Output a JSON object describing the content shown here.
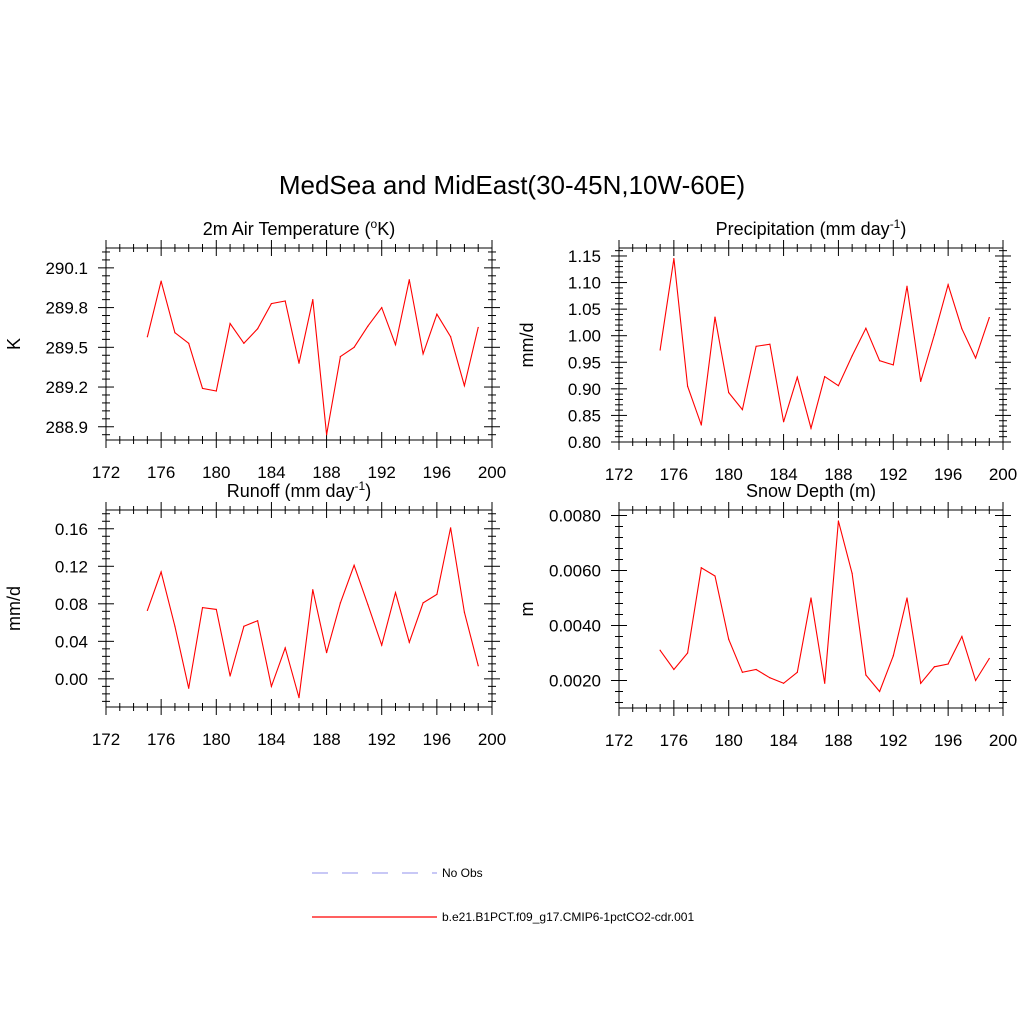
{
  "title": "MedSea and MidEast(30-45N,10W-60E)",
  "legend": {
    "placement": "bottom-center",
    "entries": [
      {
        "label": "No Obs",
        "color": "#a8a8f0",
        "style": "dashed"
      },
      {
        "label": "b.e21.B1PCT.f09_g17.CMIP6-1pctCO2-cdr.001",
        "color": "#ff0000",
        "style": "solid"
      }
    ]
  },
  "chart_data": [
    {
      "type": "line",
      "title": "2m Air Temperature (",
      "title_sup": "o",
      "title_tail": "K)",
      "ylabel": "K",
      "xlabel": "",
      "xlim": [
        172,
        200
      ],
      "ylim": [
        288.8,
        290.25
      ],
      "xticks": [
        172,
        176,
        180,
        184,
        188,
        192,
        196,
        200
      ],
      "yticks": [
        288.9,
        289.2,
        289.5,
        289.8,
        290.1
      ],
      "ytick_labels": [
        "288.9",
        "289.2",
        "289.5",
        "289.8",
        "290.1"
      ],
      "grid": false,
      "color": "#ff0000",
      "x": [
        175,
        176,
        177,
        178,
        179,
        180,
        181,
        182,
        183,
        184,
        185,
        186,
        187,
        188,
        189,
        190,
        191,
        192,
        193,
        194,
        195,
        196,
        197,
        198,
        199
      ],
      "y": [
        289.58,
        290.0,
        289.61,
        289.53,
        289.19,
        289.17,
        289.68,
        289.53,
        289.64,
        289.83,
        289.85,
        289.38,
        289.86,
        288.84,
        289.43,
        289.5,
        289.66,
        289.8,
        289.52,
        290.01,
        289.45,
        289.75,
        289.58,
        289.21,
        289.65
      ]
    },
    {
      "type": "line",
      "title": "Precipitation (mm day",
      "title_sup": "-1",
      "title_tail": ")",
      "ylabel": "mm/d",
      "xlabel": "",
      "xlim": [
        172,
        200
      ],
      "ylim": [
        0.8,
        1.165
      ],
      "xticks": [
        172,
        176,
        180,
        184,
        188,
        192,
        196,
        200
      ],
      "yticks": [
        0.8,
        0.85,
        0.9,
        0.95,
        1.0,
        1.05,
        1.1,
        1.15
      ],
      "ytick_labels": [
        "0.80",
        "0.85",
        "0.90",
        "0.95",
        "1.00",
        "1.05",
        "1.10",
        "1.15"
      ],
      "grid": false,
      "color": "#ff0000",
      "x": [
        175,
        176,
        177,
        178,
        179,
        180,
        181,
        182,
        183,
        184,
        185,
        186,
        187,
        188,
        189,
        190,
        191,
        192,
        193,
        194,
        195,
        196,
        197,
        198,
        199
      ],
      "y": [
        0.973,
        1.145,
        0.905,
        0.832,
        1.035,
        0.893,
        0.861,
        0.98,
        0.984,
        0.838,
        0.922,
        0.826,
        0.923,
        0.906,
        0.962,
        1.014,
        0.953,
        0.945,
        1.093,
        0.914,
        1.002,
        1.096,
        1.013,
        0.958,
        1.034
      ]
    },
    {
      "type": "line",
      "title": "Runoff (mm day",
      "title_sup": "-1",
      "title_tail": ")",
      "ylabel": "mm/d",
      "xlabel": "",
      "xlim": [
        172,
        200
      ],
      "ylim": [
        -0.03,
        0.18
      ],
      "xticks": [
        172,
        176,
        180,
        184,
        188,
        192,
        196,
        200
      ],
      "yticks": [
        0.0,
        0.04,
        0.08,
        0.12,
        0.16
      ],
      "ytick_labels": [
        "0.00",
        "0.04",
        "0.08",
        "0.12",
        "0.16"
      ],
      "grid": false,
      "color": "#ff0000",
      "x": [
        175,
        176,
        177,
        178,
        179,
        180,
        181,
        182,
        183,
        184,
        185,
        186,
        187,
        188,
        189,
        190,
        191,
        192,
        193,
        194,
        195,
        196,
        197,
        198,
        199
      ],
      "y": [
        0.073,
        0.114,
        0.056,
        -0.01,
        0.076,
        0.074,
        0.003,
        0.056,
        0.062,
        -0.008,
        0.033,
        -0.02,
        0.095,
        0.028,
        0.081,
        0.121,
        0.079,
        0.036,
        0.092,
        0.039,
        0.081,
        0.09,
        0.161,
        0.071,
        0.014
      ]
    },
    {
      "type": "line",
      "title": "Snow Depth (m)",
      "title_sup": "",
      "title_tail": "",
      "ylabel": "m",
      "xlabel": "",
      "xlim": [
        172,
        200
      ],
      "ylim": [
        0.001,
        0.0082
      ],
      "xticks": [
        172,
        176,
        180,
        184,
        188,
        192,
        196,
        200
      ],
      "yticks": [
        0.002,
        0.004,
        0.006,
        0.008
      ],
      "ytick_labels": [
        "0.0020",
        "0.0040",
        "0.0060",
        "0.0080"
      ],
      "grid": false,
      "color": "#ff0000",
      "x": [
        175,
        176,
        177,
        178,
        179,
        180,
        181,
        182,
        183,
        184,
        185,
        186,
        187,
        188,
        189,
        190,
        191,
        192,
        193,
        194,
        195,
        196,
        197,
        198,
        199
      ],
      "y": [
        0.0031,
        0.0024,
        0.003,
        0.0061,
        0.0058,
        0.0035,
        0.0023,
        0.0024,
        0.0021,
        0.0019,
        0.0023,
        0.005,
        0.0019,
        0.0078,
        0.0059,
        0.0022,
        0.0016,
        0.0029,
        0.005,
        0.0019,
        0.0025,
        0.0026,
        0.0036,
        0.002,
        0.0028
      ]
    }
  ]
}
